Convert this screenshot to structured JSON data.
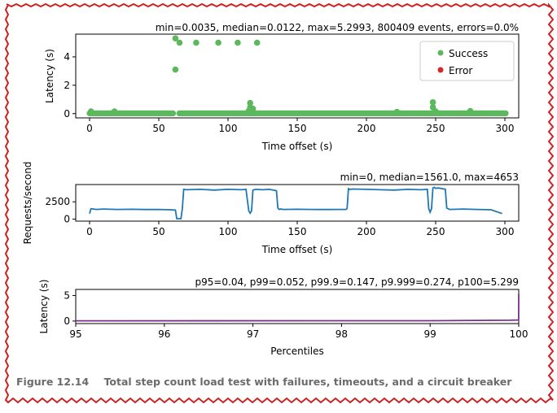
{
  "figure": {
    "caption_number": "Figure 12.14",
    "caption_text": "Total step count load test with failures, timeouts, and a circuit breaker"
  },
  "chart_data": [
    {
      "type": "scatter",
      "title": "min=0.0035, median=0.0122, max=5.2993, 800409 events, errors=0.0%",
      "xlabel": "Time offset (s)",
      "ylabel": "Latency (s)",
      "xlim": [
        -10,
        310
      ],
      "ylim": [
        -0.3,
        5.6
      ],
      "xticks": [
        0,
        50,
        100,
        150,
        200,
        250,
        300
      ],
      "yticks": [
        0,
        2,
        4
      ],
      "grid": false,
      "legend": {
        "placement": "top-right",
        "entries": [
          "Success",
          "Error"
        ]
      },
      "colors": {
        "Success": "#5cb85c",
        "Error": "#d62728"
      },
      "series": [
        {
          "name": "Success",
          "outliers": [
            [
              62,
              5.3
            ],
            [
              65,
              5.0
            ],
            [
              77,
              5.0
            ],
            [
              93,
              5.0
            ],
            [
              107,
              5.0
            ],
            [
              121,
              5.0
            ],
            [
              62,
              3.1
            ],
            [
              116,
              0.75
            ],
            [
              116,
              0.45
            ],
            [
              118,
              0.35
            ],
            [
              248,
              0.8
            ],
            [
              248,
              0.45
            ],
            [
              1,
              0.15
            ],
            [
              18,
              0.15
            ],
            [
              115,
              0.2
            ],
            [
              222,
              0.12
            ],
            [
              250,
              0.15
            ],
            [
              275,
              0.18
            ]
          ],
          "band": {
            "x_start": 0,
            "x_end": 301,
            "y": 0.02,
            "gap": [
              61,
              64
            ]
          }
        },
        {
          "name": "Error",
          "points": []
        }
      ]
    },
    {
      "type": "line",
      "title": "min=0, median=1561.0, max=4653",
      "xlabel": "Time offset (s)",
      "ylabel": "Requests/second",
      "xlim": [
        -10,
        310
      ],
      "ylim": [
        -300,
        5000
      ],
      "xticks": [
        0,
        50,
        100,
        150,
        200,
        250,
        300
      ],
      "yticks": [
        0,
        2500
      ],
      "grid": false,
      "color": "#1f77b4",
      "x": [
        0,
        1,
        5,
        10,
        20,
        30,
        40,
        50,
        58,
        62,
        63,
        66,
        67,
        68,
        70,
        80,
        90,
        100,
        110,
        113,
        115,
        116,
        117,
        118,
        120,
        125,
        130,
        135,
        136,
        137,
        138,
        140,
        150,
        160,
        170,
        180,
        185,
        186,
        187,
        188,
        190,
        200,
        210,
        220,
        230,
        240,
        244,
        245,
        246,
        247,
        248,
        249,
        250,
        252,
        255,
        257,
        258,
        259,
        260,
        270,
        280,
        290,
        298
      ],
      "y": [
        800,
        1500,
        1400,
        1450,
        1400,
        1420,
        1380,
        1400,
        1350,
        1300,
        50,
        50,
        1500,
        4300,
        4250,
        4300,
        4200,
        4300,
        4250,
        4300,
        1200,
        850,
        1200,
        4200,
        4300,
        4250,
        4300,
        4100,
        1600,
        1400,
        1450,
        1400,
        1420,
        1400,
        1380,
        1400,
        1400,
        1500,
        4400,
        4300,
        4350,
        4300,
        4250,
        4200,
        4300,
        4250,
        4300,
        1500,
        1000,
        1500,
        4500,
        4600,
        4450,
        4500,
        4400,
        4300,
        1600,
        1500,
        1400,
        1450,
        1400,
        1350,
        800
      ]
    },
    {
      "type": "line",
      "title": "p95=0.04, p99=0.052, p99.9=0.147, p9.999=0.274, p100=5.299",
      "xlabel": "Percentiles",
      "ylabel": "Latency (s)",
      "xlim": [
        95,
        100
      ],
      "ylim": [
        -0.5,
        6.2
      ],
      "xticks": [
        95,
        96,
        97,
        98,
        99,
        100
      ],
      "yticks": [
        0,
        5
      ],
      "grid": false,
      "color": "#7b2d8e",
      "x": [
        95,
        99,
        99.9,
        99.99,
        99.999,
        100
      ],
      "y": [
        0.04,
        0.052,
        0.147,
        0.2,
        0.274,
        5.299
      ]
    }
  ]
}
